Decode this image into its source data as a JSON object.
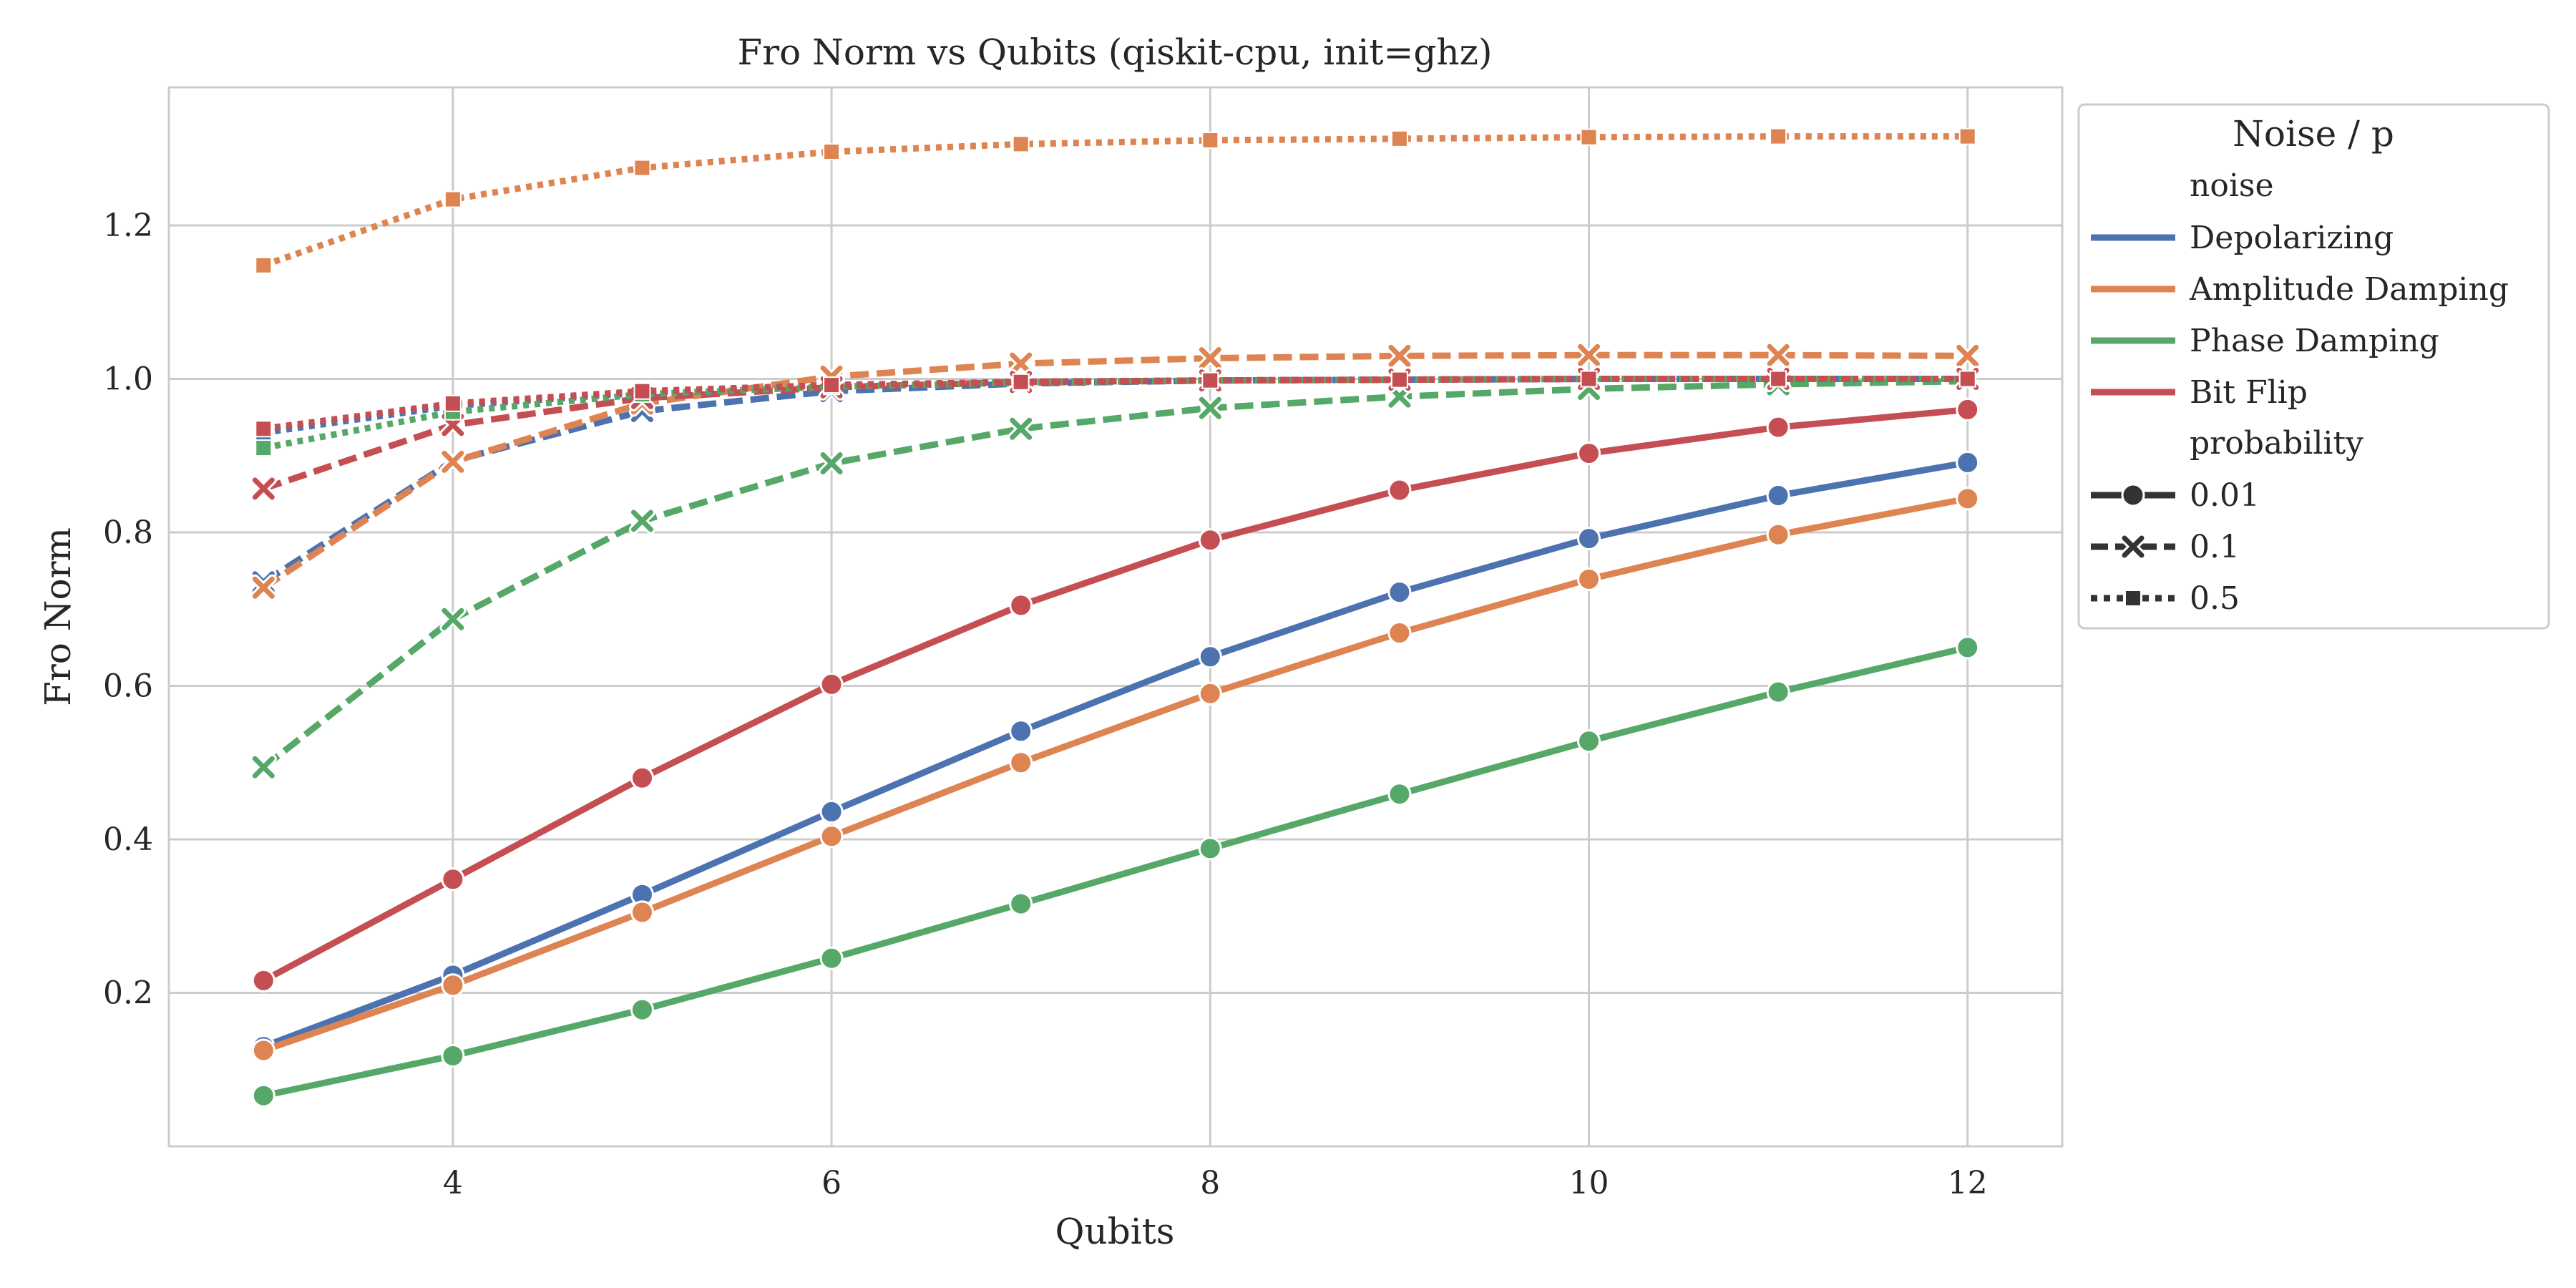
{
  "chart_data": {
    "type": "line",
    "title": "Fro Norm vs Qubits (qiskit-cpu, init=ghz)",
    "xlabel": "Qubits",
    "ylabel": "Fro Norm",
    "xlim": [
      2.5,
      12.5
    ],
    "ylim": [
      0.0,
      1.38
    ],
    "xticks": [
      4,
      6,
      8,
      10,
      12
    ],
    "yticks": [
      0.2,
      0.4,
      0.6,
      0.8,
      1.0,
      1.2
    ],
    "grid": true,
    "x": [
      3,
      4,
      5,
      6,
      7,
      8,
      9,
      10,
      11,
      12
    ],
    "legend": {
      "title": "Noise / p",
      "placement": "outside upper right",
      "hue_header": "noise",
      "style_header": "probability",
      "hue_entries": [
        {
          "label": "Depolarizing",
          "color": "#4c72b0"
        },
        {
          "label": "Amplitude Damping",
          "color": "#dd8452"
        },
        {
          "label": "Phase Damping",
          "color": "#55a868"
        },
        {
          "label": "Bit Flip",
          "color": "#c44e52"
        }
      ],
      "style_entries": [
        {
          "label": "0.01",
          "marker": "circle",
          "dash": "solid"
        },
        {
          "label": "0.1",
          "marker": "x",
          "dash": "dashed"
        },
        {
          "label": "0.5",
          "marker": "square",
          "dash": "dotted"
        }
      ]
    },
    "series": [
      {
        "noise": "Depolarizing",
        "probability": "0.01",
        "values": [
          0.13,
          0.223,
          0.328,
          0.436,
          0.541,
          0.638,
          0.722,
          0.792,
          0.848,
          0.891
        ]
      },
      {
        "noise": "Amplitude Damping",
        "probability": "0.01",
        "values": [
          0.125,
          0.21,
          0.305,
          0.404,
          0.5,
          0.59,
          0.669,
          0.739,
          0.797,
          0.844
        ]
      },
      {
        "noise": "Phase Damping",
        "probability": "0.01",
        "values": [
          0.066,
          0.118,
          0.178,
          0.245,
          0.316,
          0.388,
          0.459,
          0.528,
          0.592,
          0.65
        ]
      },
      {
        "noise": "Bit Flip",
        "probability": "0.01",
        "values": [
          0.216,
          0.348,
          0.48,
          0.602,
          0.705,
          0.79,
          0.855,
          0.903,
          0.937,
          0.96
        ]
      },
      {
        "noise": "Depolarizing",
        "probability": "0.1",
        "values": [
          0.735,
          0.893,
          0.958,
          0.984,
          0.994,
          0.998,
          0.999,
          1.0,
          1.0,
          1.0
        ]
      },
      {
        "noise": "Amplitude Damping",
        "probability": "0.1",
        "values": [
          0.728,
          0.892,
          0.968,
          1.003,
          1.02,
          1.027,
          1.03,
          1.031,
          1.031,
          1.03
        ]
      },
      {
        "noise": "Phase Damping",
        "probability": "0.1",
        "values": [
          0.494,
          0.687,
          0.815,
          0.89,
          0.935,
          0.962,
          0.977,
          0.987,
          0.993,
          0.997
        ]
      },
      {
        "noise": "Bit Flip",
        "probability": "0.1",
        "values": [
          0.857,
          0.94,
          0.975,
          0.989,
          0.996,
          0.998,
          0.999,
          1.0,
          1.0,
          1.0
        ]
      },
      {
        "noise": "Depolarizing",
        "probability": "0.5",
        "values": [
          0.93,
          0.965,
          0.982,
          0.992,
          0.996,
          0.998,
          0.999,
          1.0,
          1.0,
          1.0
        ]
      },
      {
        "noise": "Amplitude Damping",
        "probability": "0.5",
        "values": [
          1.148,
          1.234,
          1.275,
          1.296,
          1.306,
          1.311,
          1.313,
          1.315,
          1.316,
          1.316
        ]
      },
      {
        "noise": "Phase Damping",
        "probability": "0.5",
        "values": [
          0.91,
          0.957,
          0.98,
          0.99,
          0.995,
          0.998,
          0.999,
          1.0,
          1.0,
          1.0
        ]
      },
      {
        "noise": "Bit Flip",
        "probability": "0.5",
        "values": [
          0.935,
          0.968,
          0.984,
          0.992,
          0.996,
          0.998,
          0.999,
          1.0,
          1.0,
          1.0
        ]
      }
    ]
  }
}
